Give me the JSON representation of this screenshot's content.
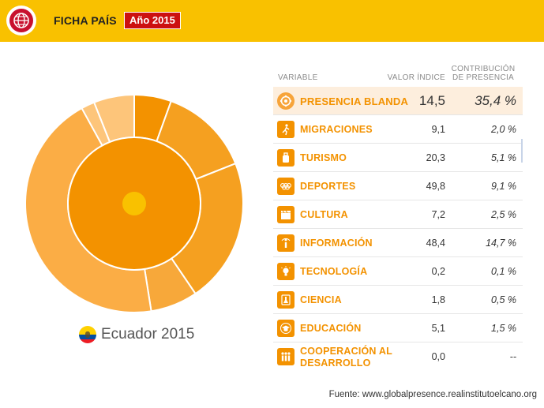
{
  "header": {
    "title": "FICHA PAÍS",
    "year_badge": "Año 2015"
  },
  "country": {
    "label": "Ecuador 2015",
    "flag": "ecuador-flag"
  },
  "table": {
    "col_variable": "VARIABLE",
    "col_value": "VALOR ÍNDICE",
    "col_contribution": "CONTRIBUCIÓN DE PRESENCIA",
    "main": {
      "label": "PRESENCIA BLANDA",
      "value": "14,5",
      "contribution": "35,4 %",
      "icon": "soft-presence-icon"
    },
    "rows": [
      {
        "label": "MIGRACIONES",
        "value": "9,1",
        "contribution": "2,0 %",
        "icon": "migration-icon"
      },
      {
        "label": "TURISMO",
        "value": "20,3",
        "contribution": "5,1 %",
        "icon": "luggage-icon"
      },
      {
        "label": "DEPORTES",
        "value": "49,8",
        "contribution": "9,1 %",
        "icon": "olympic-rings-icon"
      },
      {
        "label": "CULTURA",
        "value": "7,2",
        "contribution": "2,5 %",
        "icon": "clapperboard-icon"
      },
      {
        "label": "INFORMACIÓN",
        "value": "48,4",
        "contribution": "14,7 %",
        "icon": "info-icon"
      },
      {
        "label": "TECNOLOGÍA",
        "value": "0,2",
        "contribution": "0,1 %",
        "icon": "lightbulb-icon"
      },
      {
        "label": "CIENCIA",
        "value": "1,8",
        "contribution": "0,5 %",
        "icon": "flask-icon"
      },
      {
        "label": "EDUCACIÓN",
        "value": "5,1",
        "contribution": "1,5 %",
        "icon": "graduation-cap-icon"
      },
      {
        "label": "COOPERACIÓN AL DESARROLLO",
        "value": "0,0",
        "contribution": "--",
        "icon": "people-icon"
      }
    ]
  },
  "footer": {
    "source": "Fuente: www.globalpresence.realinstitutoelcano.org"
  },
  "colors": {
    "header_bg": "#f9c100",
    "badge": "#cc1010",
    "accent": "#f39200",
    "center": "#f9c100",
    "outer_light": "#fbb04a",
    "outer_lighter": "#fdc57a"
  },
  "sunburst": {
    "inner": [
      {
        "name": "PRESENCIA BLANDA",
        "share": 1
      }
    ],
    "outer": [
      {
        "share": 0.055,
        "color": "#f39200"
      },
      {
        "share": 0.135,
        "color": "#f5a020"
      },
      {
        "share": 0.215,
        "color": "#f5a020"
      },
      {
        "share": 0.07,
        "color": "#f7a83a"
      },
      {
        "share": 0.445,
        "color": "#fbad45"
      },
      {
        "share": 0.02,
        "color": "#fdc57a"
      },
      {
        "share": 0.06,
        "color": "#fdc57a"
      }
    ]
  }
}
